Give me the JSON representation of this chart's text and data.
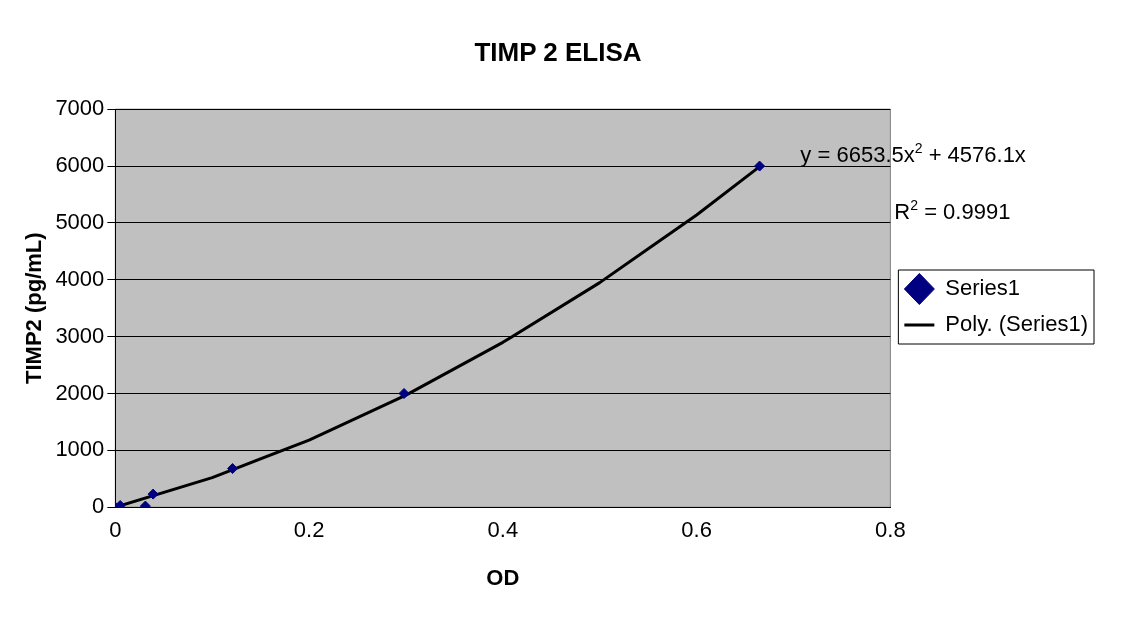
{
  "chart_data": {
    "type": "scatter",
    "title": "TIMP 2 ELISA",
    "xlabel": "OD",
    "ylabel": "TIMP2 (pg/mL)",
    "xlim": [
      0,
      0.8
    ],
    "xticks": [
      0,
      0.2,
      0.4,
      0.6,
      0.8
    ],
    "ylim": [
      0,
      7000
    ],
    "yticks": [
      0,
      1000,
      2000,
      3000,
      4000,
      5000,
      6000,
      7000
    ],
    "grid": "y",
    "legend": "right",
    "marker": "diamond",
    "series": [
      {
        "name": "Series1",
        "type": "scatter",
        "color": "#000080",
        "x": [
          0,
          0.005,
          0.031,
          0.039,
          0.121,
          0.298,
          0.665
        ],
        "values": [
          0,
          30,
          20,
          230,
          680,
          2000,
          6000
        ]
      },
      {
        "name": "Poly. (Series1)",
        "type": "line",
        "color": "#000000",
        "marker": "none",
        "line_style": "solid",
        "x": [
          0,
          0.1,
          0.2,
          0.3,
          0.4,
          0.5,
          0.6,
          0.665
        ],
        "values": [
          0,
          520,
          1180,
          1970,
          2900,
          3950,
          5140,
          5990
        ]
      }
    ],
    "annotations": [
      "y = 6653.5x$^{2}$ + 4576.1x",
      "R$^{2}$ = 0.9991"
    ]
  }
}
